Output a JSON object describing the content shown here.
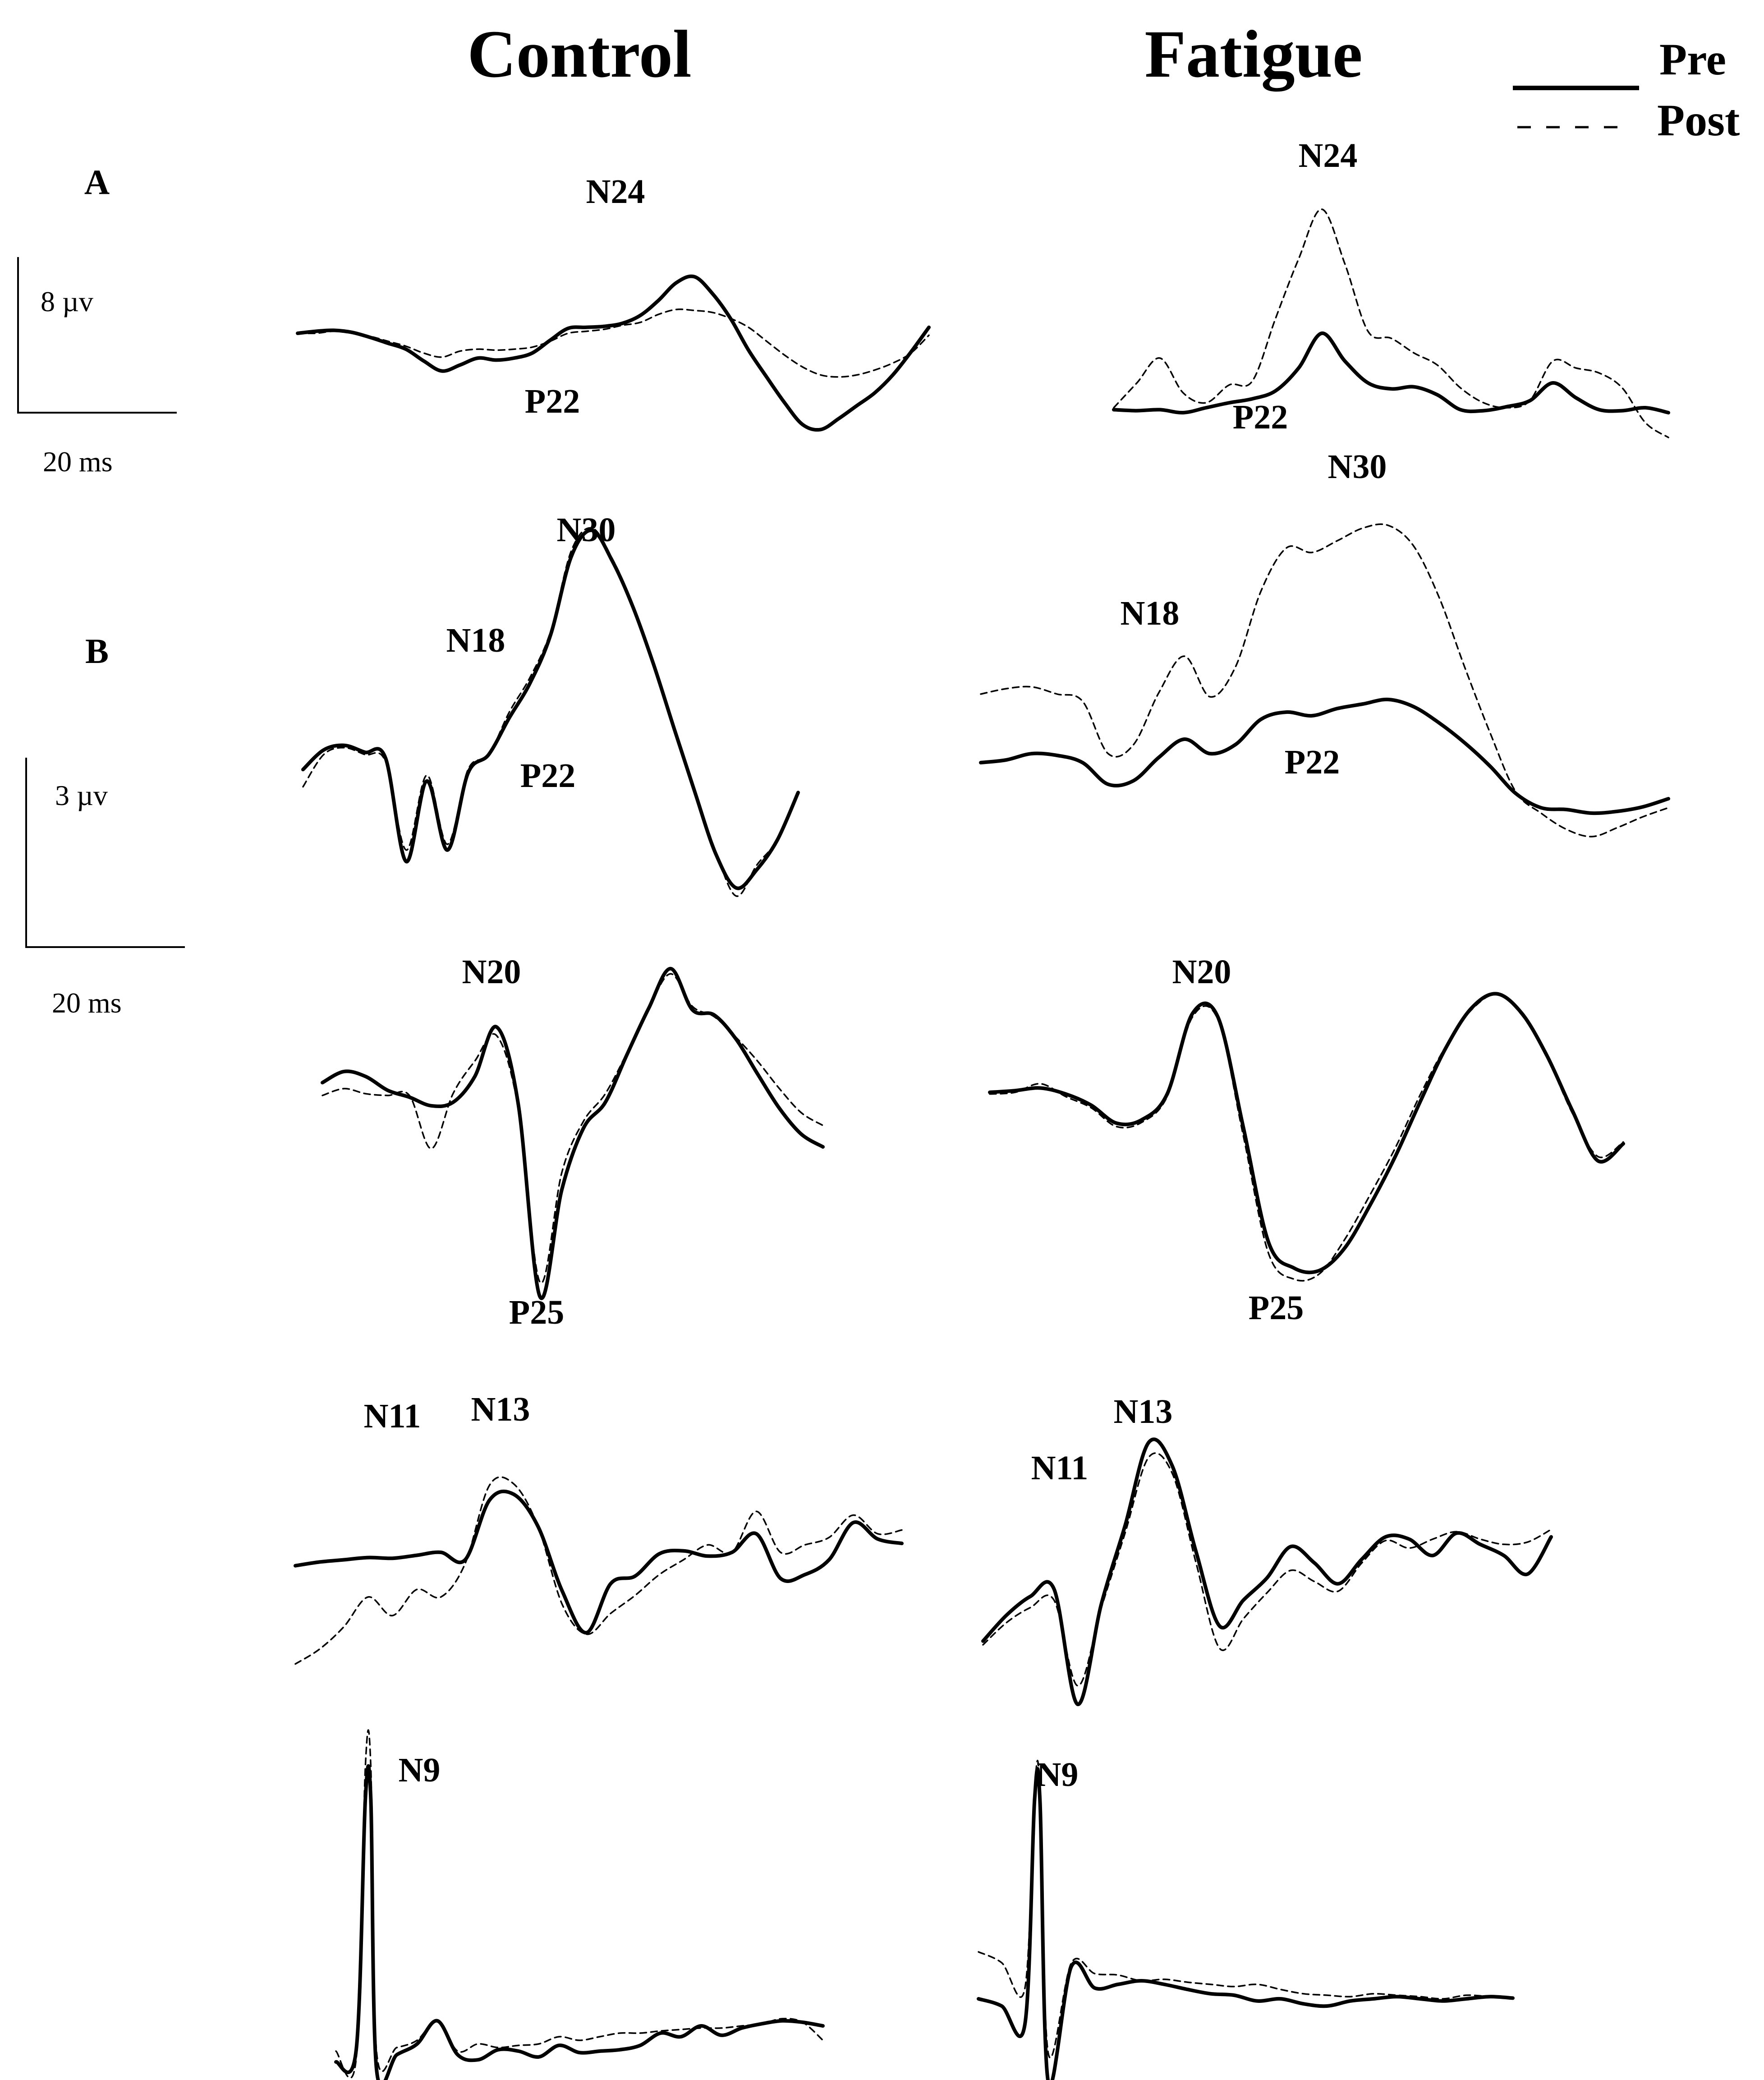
{
  "chart_data": {
    "type": "line",
    "columns": [
      "Control",
      "Fatigue"
    ],
    "legend": {
      "placement": "top-right",
      "entries": [
        {
          "label": "Pre",
          "style": "solid"
        },
        {
          "label": "Post",
          "style": "dashed"
        }
      ]
    },
    "panel_labels": [
      "A",
      "B"
    ],
    "scale_bars": [
      {
        "amplitude": "8 µv",
        "time": "20 ms"
      },
      {
        "amplitude": "3 µv",
        "time": "20 ms"
      }
    ],
    "rows": [
      {
        "control": {
          "pre": [
            0.8,
            0.82,
            0.83,
            0.81,
            0.76,
            0.7,
            0.64,
            0.52,
            0.42,
            0.48,
            0.55,
            0.53,
            0.55,
            0.6,
            0.73,
            0.85,
            0.86,
            0.87,
            0.9,
            0.98,
            1.13,
            1.31,
            1.37,
            1.2,
            0.95,
            0.63,
            0.36,
            0.1,
            -0.12,
            -0.17,
            -0.06,
            0.07,
            0.2,
            0.38,
            0.61,
            0.86
          ],
          "post": [
            0.8,
            0.8,
            0.82,
            0.8,
            0.77,
            0.72,
            0.67,
            0.6,
            0.56,
            0.62,
            0.64,
            0.63,
            0.64,
            0.66,
            0.72,
            0.8,
            0.82,
            0.84,
            0.88,
            0.91,
            0.99,
            1.04,
            1.03,
            1.01,
            0.95,
            0.86,
            0.72,
            0.58,
            0.46,
            0.38,
            0.36,
            0.38,
            0.43,
            0.5,
            0.6,
            0.78
          ],
          "peak_labels": [
            "N24",
            "P22"
          ]
        },
        "fatigue": {
          "pre": [
            0.03,
            0.02,
            0.03,
            0.0,
            0.05,
            0.1,
            0.14,
            0.22,
            0.45,
            0.8,
            0.52,
            0.3,
            0.24,
            0.26,
            0.18,
            0.03,
            0.02,
            0.06,
            0.12,
            0.3,
            0.15,
            0.03,
            0.02,
            0.05,
            0.0
          ],
          "post": [
            0.05,
            0.3,
            0.55,
            0.2,
            0.1,
            0.28,
            0.32,
            0.95,
            1.55,
            2.05,
            1.5,
            0.82,
            0.75,
            0.6,
            0.48,
            0.25,
            0.1,
            0.05,
            0.12,
            0.52,
            0.45,
            0.4,
            0.25,
            -0.1,
            -0.25
          ],
          "peak_labels": [
            "N24",
            "P22",
            "N30"
          ]
        }
      },
      {
        "control": {
          "pre": [
            0.25,
            0.42,
            0.46,
            0.4,
            0.35,
            -0.55,
            0.15,
            -0.45,
            0.22,
            0.38,
            0.7,
            1.0,
            1.42,
            2.1,
            2.33,
            2.06,
            1.66,
            1.16,
            0.6,
            0.05,
            -0.48,
            -0.78,
            -0.62,
            -0.36,
            0.05
          ],
          "post": [
            0.1,
            0.38,
            0.44,
            0.38,
            0.32,
            -0.45,
            0.2,
            -0.4,
            0.25,
            0.38,
            0.75,
            1.05,
            1.45,
            2.15,
            2.35,
            2.08,
            1.68,
            1.18,
            0.62,
            0.07,
            -0.46,
            -0.85,
            -0.58,
            -0.36,
            0.05
          ],
          "peak_labels": [
            "N30",
            "N18",
            "P22"
          ]
        },
        "fatigue": {
          "pre": [
            0.52,
            0.55,
            0.62,
            0.6,
            0.52,
            0.28,
            0.32,
            0.58,
            0.78,
            0.62,
            0.72,
            1.0,
            1.08,
            1.04,
            1.12,
            1.17,
            1.22,
            1.14,
            0.96,
            0.74,
            0.48,
            0.18,
            0.02,
            0.0,
            -0.04,
            -0.02,
            0.03,
            0.12
          ],
          "post": [
            1.28,
            1.34,
            1.36,
            1.28,
            1.2,
            0.62,
            0.72,
            1.3,
            1.7,
            1.25,
            1.58,
            2.42,
            2.9,
            2.85,
            2.98,
            3.12,
            3.15,
            2.92,
            2.35,
            1.58,
            0.85,
            0.2,
            -0.04,
            -0.22,
            -0.3,
            -0.2,
            -0.08,
            0.02
          ],
          "peak_labels": [
            "N18",
            "P22"
          ]
        }
      },
      {
        "control": {
          "pre": [
            0.55,
            0.68,
            0.62,
            0.46,
            0.38,
            0.28,
            0.32,
            0.62,
            1.2,
            0.3,
            -1.95,
            -0.7,
            0.02,
            0.32,
            0.88,
            1.42,
            1.88,
            1.4,
            1.34,
            1.06,
            0.65,
            0.25,
            -0.05,
            -0.2
          ],
          "post": [
            0.4,
            0.48,
            0.42,
            0.4,
            0.4,
            -0.22,
            0.42,
            0.8,
            1.1,
            0.25,
            -1.78,
            -0.5,
            0.1,
            0.42,
            0.9,
            1.42,
            1.82,
            1.44,
            1.32,
            1.08,
            0.8,
            0.48,
            0.2,
            0.05
          ],
          "peak_labels": [
            "N20",
            "P25"
          ]
        },
        "fatigue": {
          "pre": [
            0.7,
            0.72,
            0.75,
            0.68,
            0.55,
            0.34,
            0.38,
            0.68,
            1.62,
            1.58,
            0.3,
            -1.05,
            -1.35,
            -1.38,
            -1.12,
            -0.62,
            -0.05,
            0.6,
            1.22,
            1.68,
            1.85,
            1.62,
            1.12,
            0.48,
            -0.1,
            0.1
          ],
          "post": [
            0.68,
            0.7,
            0.8,
            0.65,
            0.52,
            0.3,
            0.35,
            0.65,
            1.58,
            1.55,
            0.2,
            -1.18,
            -1.48,
            -1.42,
            -1.02,
            -0.5,
            0.05,
            0.68,
            1.24,
            1.66,
            1.84,
            1.6,
            1.1,
            0.45,
            -0.05,
            0.12
          ],
          "peak_labels": [
            "N20",
            "P25"
          ]
        }
      },
      {
        "control": {
          "pre": [
            0.02,
            0.07,
            0.1,
            0.13,
            0.12,
            0.16,
            0.2,
            0.1,
            0.9,
            0.98,
            0.55,
            -0.32,
            -0.88,
            -0.22,
            -0.12,
            0.18,
            0.22,
            0.15,
            0.2,
            0.45,
            -0.15,
            -0.1,
            0.1,
            0.6,
            0.38,
            0.32
          ],
          "post": [
            -1.3,
            -1.1,
            -0.8,
            -0.4,
            -0.65,
            -0.3,
            -0.4,
            0.05,
            1.1,
            1.12,
            0.55,
            -0.5,
            -0.9,
            -0.62,
            -0.38,
            -0.1,
            0.1,
            0.3,
            0.2,
            0.75,
            0.2,
            0.3,
            0.4,
            0.7,
            0.45,
            0.5
          ],
          "peak_labels": [
            "N11",
            "N13"
          ]
        },
        "fatigue": {
          "pre": [
            -0.75,
            -0.4,
            -0.15,
            -0.05,
            -1.6,
            -0.25,
            0.8,
            1.92,
            1.6,
            0.45,
            -0.55,
            -0.2,
            0.1,
            0.52,
            0.3,
            0.02,
            0.35,
            0.65,
            0.62,
            0.4,
            0.7,
            0.55,
            0.4,
            0.15,
            0.65
          ],
          "post": [
            -0.8,
            -0.5,
            -0.3,
            -0.2,
            -1.35,
            -0.3,
            0.7,
            1.72,
            1.5,
            0.3,
            -0.85,
            -0.45,
            -0.1,
            0.2,
            0.05,
            -0.08,
            0.3,
            0.6,
            0.5,
            0.62,
            0.72,
            0.62,
            0.55,
            0.58,
            0.75
          ],
          "peak_labels": [
            "N11",
            "N13"
          ]
        }
      },
      {
        "control": {
          "pre": [
            -0.45,
            -0.28,
            -0.55,
            -0.35,
            -0.2,
            0.12,
            -0.35,
            -0.42,
            -0.28,
            -0.3,
            -0.38,
            -0.22,
            -0.32,
            -0.3,
            -0.28,
            -0.22,
            -0.05,
            -0.1,
            0.05,
            -0.08,
            0.02,
            0.08,
            0.12,
            0.1,
            0.05
          ],
          "post": [
            -0.3,
            -0.4,
            -0.3,
            -0.25,
            -0.15,
            0.12,
            -0.3,
            -0.2,
            -0.25,
            -0.22,
            -0.2,
            -0.1,
            -0.15,
            -0.1,
            -0.05,
            -0.05,
            -0.02,
            0.0,
            0.02,
            0.02,
            0.05,
            0.08,
            0.15,
            0.1,
            -0.15
          ],
          "spike": {
            "pre": 3.2,
            "post": 3.65
          },
          "peak_labels": [
            "N9"
          ]
        },
        "fatigue": {
          "pre": [
            0.05,
            -0.05,
            -0.3,
            -1.1,
            0.5,
            0.2,
            0.25,
            0.3,
            0.25,
            0.18,
            0.12,
            0.1,
            0.02,
            0.05,
            -0.02,
            -0.05,
            0.02,
            0.05,
            0.08,
            0.05,
            0.02,
            0.05,
            0.08,
            0.06
          ],
          "post": [
            0.7,
            0.55,
            0.2,
            -0.7,
            0.55,
            0.4,
            0.38,
            0.3,
            0.32,
            0.28,
            0.25,
            0.22,
            0.25,
            0.18,
            0.12,
            0.1,
            0.08,
            0.12,
            0.1,
            0.08,
            0.05,
            0.1,
            0.08,
            0.06
          ],
          "spike": {
            "pre": 2.8,
            "post": 2.95
          },
          "peak_labels": [
            "N9"
          ]
        }
      }
    ]
  },
  "colors": {
    "trace": "#000000",
    "background": "#ffffff"
  }
}
